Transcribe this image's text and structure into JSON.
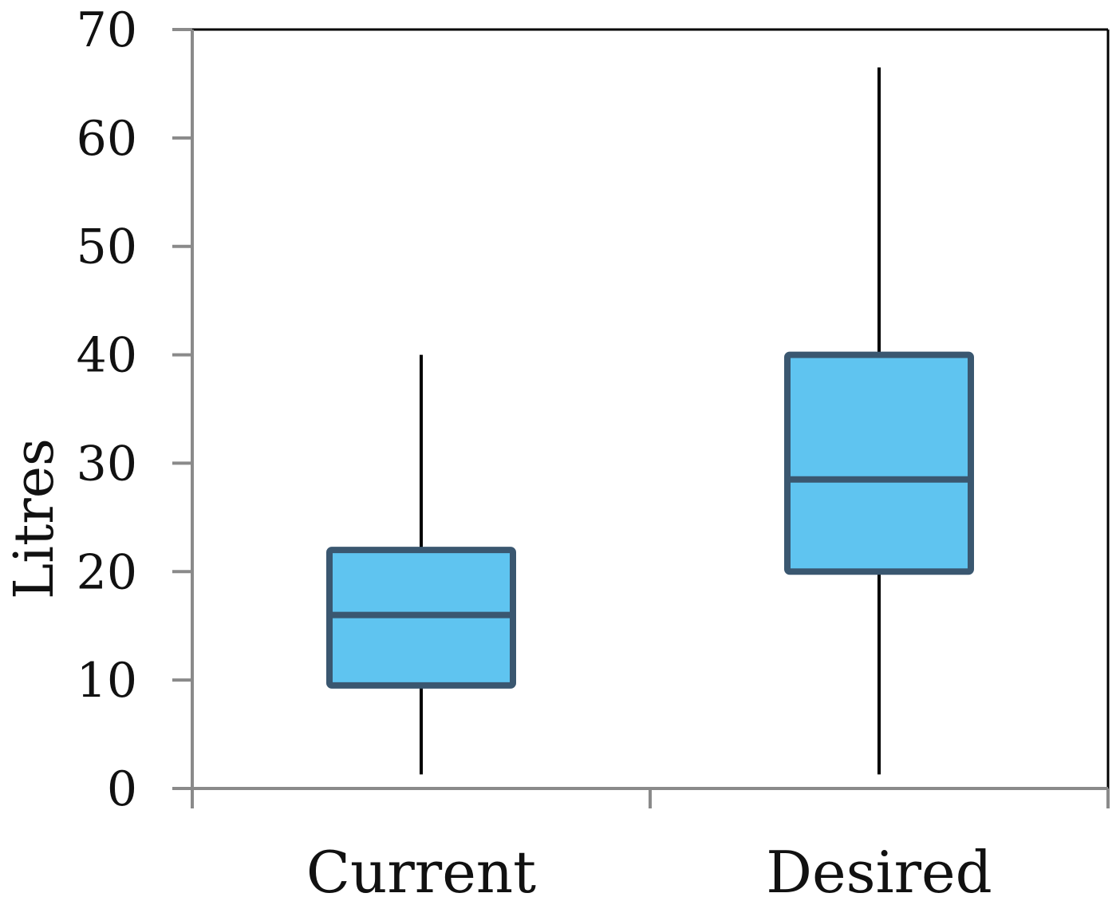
{
  "chart_data": {
    "type": "box",
    "title": "",
    "xlabel": "",
    "ylabel": "Litres",
    "ylim": [
      0,
      70
    ],
    "yticks": [
      "0",
      "10",
      "20",
      "30",
      "40",
      "50",
      "60",
      "70"
    ],
    "grid": false,
    "legend": "none",
    "categories": [
      "Current",
      "Desired"
    ],
    "series": [
      {
        "values": [
          {
            "category": "Current",
            "whisker_low": 1.3,
            "q1": 9.5,
            "median": 16,
            "q3": 22,
            "whisker_high": 40
          },
          {
            "category": "Desired",
            "whisker_low": 1.3,
            "q1": 20,
            "median": 28.5,
            "q3": 40,
            "whisker_high": 66.5
          }
        ]
      }
    ],
    "colors": {
      "box_fill": "#5fc4f0",
      "box_edge": "#3a5770",
      "whisker": "#000000",
      "axis": "#8a8a8a",
      "frame": "#000000"
    }
  }
}
